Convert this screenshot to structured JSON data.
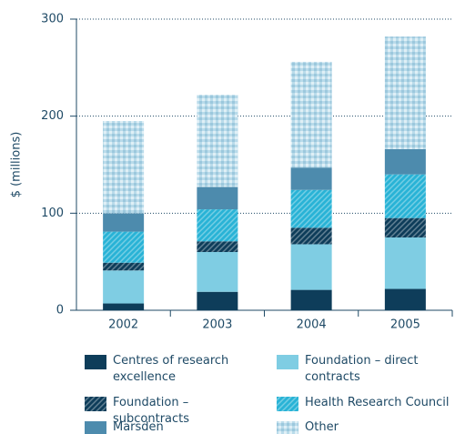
{
  "chart_data": {
    "type": "stacked_bar",
    "y_label": "$ (millions)",
    "categories": [
      "2002",
      "2003",
      "2004",
      "2005"
    ],
    "series": [
      {
        "name": "Centres of research excellence",
        "color": "#0e3d5a",
        "pattern": "solid",
        "values": [
          7,
          19,
          21,
          22
        ]
      },
      {
        "name": "Foundation – direct contracts",
        "color": "#7fcde3",
        "pattern": "solid",
        "values": [
          34,
          41,
          47,
          53
        ]
      },
      {
        "name": "Foundation – subcontracts",
        "color": "#0e3d5a",
        "pattern": "hatch",
        "values": [
          8,
          11,
          17,
          20
        ]
      },
      {
        "name": "Health Research Council",
        "color": "#29b3d6",
        "pattern": "hatch",
        "values": [
          32,
          33,
          39,
          45
        ]
      },
      {
        "name": "Marsden",
        "color": "#4d8bad",
        "pattern": "solid",
        "values": [
          19,
          23,
          23,
          26
        ]
      },
      {
        "name": "Other",
        "color": "#b9dbea",
        "pattern": "check",
        "values": [
          95,
          95,
          109,
          116
        ]
      }
    ],
    "ylim": [
      0,
      300
    ],
    "yticks": [
      0,
      100,
      200,
      300
    ],
    "grid": true
  }
}
